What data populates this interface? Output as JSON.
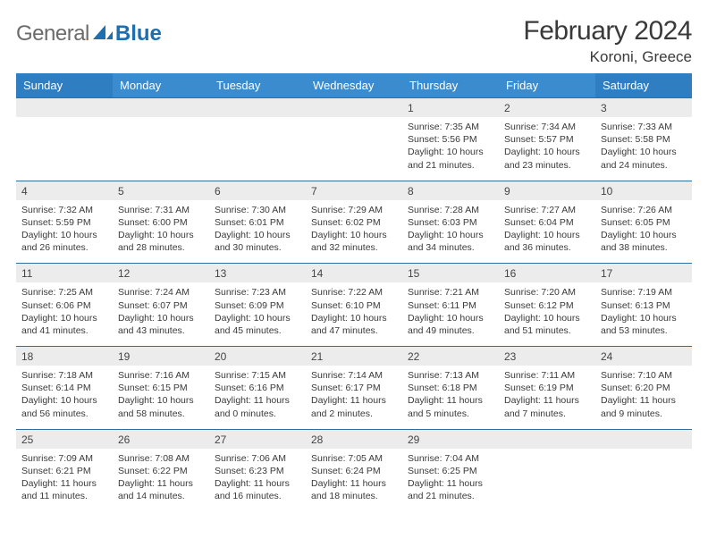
{
  "brand": {
    "textA": "General",
    "textB": "Blue",
    "logo_color": "#1e6fb0",
    "text_color": "#6b6b6b"
  },
  "title": "February 2024",
  "location": "Koroni, Greece",
  "colors": {
    "header_weekend": "#2f7ec2",
    "header_weekday": "#3a8ccf",
    "row_border": "#2f6fa0",
    "daynum_bg": "#ececec",
    "page_bg": "#ffffff",
    "text": "#3a3a3a"
  },
  "day_headers": [
    "Sunday",
    "Monday",
    "Tuesday",
    "Wednesday",
    "Thursday",
    "Friday",
    "Saturday"
  ],
  "weeks": [
    [
      null,
      null,
      null,
      null,
      {
        "n": "1",
        "sunrise": "7:35 AM",
        "sunset": "5:56 PM",
        "dayH": 10,
        "dayM": 21
      },
      {
        "n": "2",
        "sunrise": "7:34 AM",
        "sunset": "5:57 PM",
        "dayH": 10,
        "dayM": 23
      },
      {
        "n": "3",
        "sunrise": "7:33 AM",
        "sunset": "5:58 PM",
        "dayH": 10,
        "dayM": 24
      }
    ],
    [
      {
        "n": "4",
        "sunrise": "7:32 AM",
        "sunset": "5:59 PM",
        "dayH": 10,
        "dayM": 26
      },
      {
        "n": "5",
        "sunrise": "7:31 AM",
        "sunset": "6:00 PM",
        "dayH": 10,
        "dayM": 28
      },
      {
        "n": "6",
        "sunrise": "7:30 AM",
        "sunset": "6:01 PM",
        "dayH": 10,
        "dayM": 30
      },
      {
        "n": "7",
        "sunrise": "7:29 AM",
        "sunset": "6:02 PM",
        "dayH": 10,
        "dayM": 32
      },
      {
        "n": "8",
        "sunrise": "7:28 AM",
        "sunset": "6:03 PM",
        "dayH": 10,
        "dayM": 34
      },
      {
        "n": "9",
        "sunrise": "7:27 AM",
        "sunset": "6:04 PM",
        "dayH": 10,
        "dayM": 36
      },
      {
        "n": "10",
        "sunrise": "7:26 AM",
        "sunset": "6:05 PM",
        "dayH": 10,
        "dayM": 38
      }
    ],
    [
      {
        "n": "11",
        "sunrise": "7:25 AM",
        "sunset": "6:06 PM",
        "dayH": 10,
        "dayM": 41
      },
      {
        "n": "12",
        "sunrise": "7:24 AM",
        "sunset": "6:07 PM",
        "dayH": 10,
        "dayM": 43
      },
      {
        "n": "13",
        "sunrise": "7:23 AM",
        "sunset": "6:09 PM",
        "dayH": 10,
        "dayM": 45
      },
      {
        "n": "14",
        "sunrise": "7:22 AM",
        "sunset": "6:10 PM",
        "dayH": 10,
        "dayM": 47
      },
      {
        "n": "15",
        "sunrise": "7:21 AM",
        "sunset": "6:11 PM",
        "dayH": 10,
        "dayM": 49
      },
      {
        "n": "16",
        "sunrise": "7:20 AM",
        "sunset": "6:12 PM",
        "dayH": 10,
        "dayM": 51
      },
      {
        "n": "17",
        "sunrise": "7:19 AM",
        "sunset": "6:13 PM",
        "dayH": 10,
        "dayM": 53
      }
    ],
    [
      {
        "n": "18",
        "sunrise": "7:18 AM",
        "sunset": "6:14 PM",
        "dayH": 10,
        "dayM": 56
      },
      {
        "n": "19",
        "sunrise": "7:16 AM",
        "sunset": "6:15 PM",
        "dayH": 10,
        "dayM": 58
      },
      {
        "n": "20",
        "sunrise": "7:15 AM",
        "sunset": "6:16 PM",
        "dayH": 11,
        "dayM": 0
      },
      {
        "n": "21",
        "sunrise": "7:14 AM",
        "sunset": "6:17 PM",
        "dayH": 11,
        "dayM": 2
      },
      {
        "n": "22",
        "sunrise": "7:13 AM",
        "sunset": "6:18 PM",
        "dayH": 11,
        "dayM": 5
      },
      {
        "n": "23",
        "sunrise": "7:11 AM",
        "sunset": "6:19 PM",
        "dayH": 11,
        "dayM": 7
      },
      {
        "n": "24",
        "sunrise": "7:10 AM",
        "sunset": "6:20 PM",
        "dayH": 11,
        "dayM": 9
      }
    ],
    [
      {
        "n": "25",
        "sunrise": "7:09 AM",
        "sunset": "6:21 PM",
        "dayH": 11,
        "dayM": 11
      },
      {
        "n": "26",
        "sunrise": "7:08 AM",
        "sunset": "6:22 PM",
        "dayH": 11,
        "dayM": 14
      },
      {
        "n": "27",
        "sunrise": "7:06 AM",
        "sunset": "6:23 PM",
        "dayH": 11,
        "dayM": 16
      },
      {
        "n": "28",
        "sunrise": "7:05 AM",
        "sunset": "6:24 PM",
        "dayH": 11,
        "dayM": 18
      },
      {
        "n": "29",
        "sunrise": "7:04 AM",
        "sunset": "6:25 PM",
        "dayH": 11,
        "dayM": 21
      },
      null,
      null
    ]
  ],
  "labels": {
    "sunrise": "Sunrise: ",
    "sunset": "Sunset: ",
    "daylight": "Daylight: ",
    "hours": " hours and ",
    "minutes": " minutes."
  }
}
